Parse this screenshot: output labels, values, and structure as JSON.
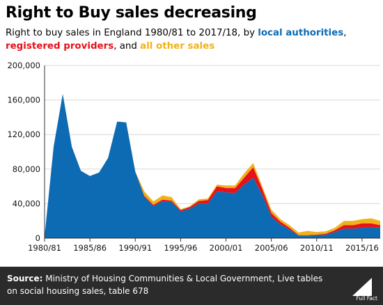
{
  "header": {
    "title": "Right to Buy sales decreasing",
    "subtitle_prefix": "Right to buy sales in England 1980/81 to 2017/18, by ",
    "subtitle_la": "local authorities",
    "subtitle_sep": ",",
    "subtitle_rp": "registered providers",
    "subtitle_and": ", and ",
    "subtitle_other": "all other sales"
  },
  "footer": {
    "source_label": "Source:",
    "source_text": " Ministry of Housing Communities & Local Government, Live tables on social housing sales, table 678",
    "logo_text": "Full Fact",
    "background": "#2b2b2b"
  },
  "colors": {
    "local_authorities": "#0d6bb3",
    "registered_providers": "#e8101a",
    "other": "#f0b21a"
  },
  "chart_data": {
    "type": "area",
    "stacked": true,
    "x": [
      "1980/81",
      "1981/82",
      "1982/83",
      "1983/84",
      "1984/85",
      "1985/86",
      "1986/87",
      "1987/88",
      "1988/89",
      "1989/90",
      "1990/91",
      "1991/92",
      "1992/93",
      "1993/94",
      "1994/95",
      "1995/96",
      "1996/97",
      "1997/98",
      "1998/99",
      "1999/00",
      "2000/01",
      "2001/02",
      "2002/03",
      "2003/04",
      "2004/05",
      "2005/06",
      "2006/07",
      "2007/08",
      "2008/09",
      "2009/10",
      "2010/11",
      "2011/12",
      "2012/13",
      "2013/14",
      "2014/15",
      "2015/16",
      "2016/17",
      "2017/18"
    ],
    "x_tick_labels": [
      "1980/81",
      "1985/86",
      "1990/91",
      "1995/96",
      "2000/01",
      "2005/06",
      "2010/11",
      "2015/16"
    ],
    "y_ticks": [
      0,
      40000,
      80000,
      120000,
      160000,
      200000
    ],
    "y_tick_labels": [
      "0",
      "40,000",
      "80,000",
      "120,000",
      "160,000",
      "200,000"
    ],
    "ylim": [
      0,
      200000
    ],
    "grid": true,
    "series": [
      {
        "name": "local authorities",
        "values": [
          2000,
          106000,
          167000,
          106000,
          78000,
          72000,
          76000,
          93000,
          135000,
          134000,
          77000,
          48000,
          37000,
          43000,
          42000,
          31000,
          34000,
          40000,
          40000,
          54000,
          53000,
          52000,
          62000,
          70000,
          50000,
          25000,
          16000,
          10000,
          3000,
          3000,
          3500,
          4000,
          7000,
          11000,
          11000,
          12000,
          13000,
          12000
        ]
      },
      {
        "name": "registered providers",
        "values": [
          0,
          0,
          0,
          0,
          0,
          0,
          0,
          0,
          0,
          0,
          0,
          1000,
          1500,
          1500,
          1500,
          1500,
          2000,
          3000,
          4000,
          6000,
          5000,
          6000,
          8000,
          12000,
          7000,
          4000,
          3000,
          2000,
          500,
          500,
          500,
          1000,
          2000,
          4000,
          4000,
          5000,
          4000,
          3000
        ]
      },
      {
        "name": "all other sales",
        "values": [
          0,
          0,
          0,
          0,
          0,
          0,
          0,
          0,
          0,
          0,
          0,
          5000,
          4000,
          5000,
          4000,
          1000,
          1000,
          2000,
          2000,
          2000,
          3000,
          3000,
          5000,
          5000,
          3000,
          4000,
          3000,
          3000,
          3000,
          5000,
          3000,
          3000,
          3000,
          5000,
          5000,
          5000,
          6000,
          5000
        ]
      }
    ]
  }
}
